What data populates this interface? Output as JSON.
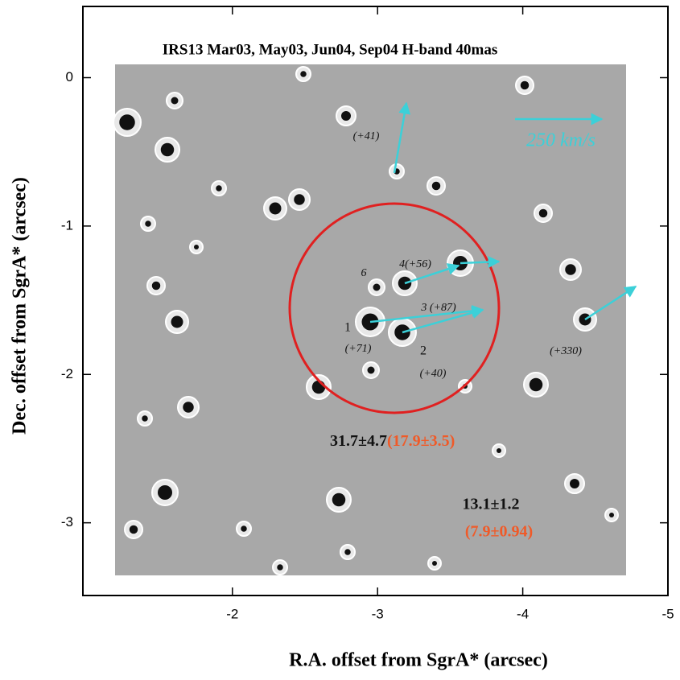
{
  "chart_data": {
    "type": "image",
    "title": "IRS13 Mar03, May03, Jun04, Sep04 H-band 40mas",
    "x_label": "R.A. offset from SgrA* (arcsec)",
    "y_label": "Dec. offset from SgrA* (arcsec)",
    "xlim": [
      -0.97,
      -5
    ],
    "xticks": [
      -2,
      -3,
      -4,
      -5
    ],
    "ylim": [
      -3.49,
      0.48
    ],
    "yticks": [
      0,
      -1,
      -2,
      -3
    ],
    "annotations": {
      "velocity_scale": "250 km/s",
      "star_a": "(+41)",
      "label_6": "6",
      "label_4": "4(+56)",
      "label_3": "3 (+87)",
      "label_1": "1",
      "vel_1": "(+71)",
      "label_2": "2",
      "vel_2": "(+40)",
      "star_b": "(+330)",
      "inner_count": "31.7±4.7",
      "inner_count_red": "(17.9±3.5)",
      "outer_count": "13.1±1.2",
      "outer_count_red": "(7.9±0.94)"
    },
    "circle_color": "#e02020",
    "arrow_color": "#3cd0d8",
    "count_red_color": "#f05a28"
  }
}
